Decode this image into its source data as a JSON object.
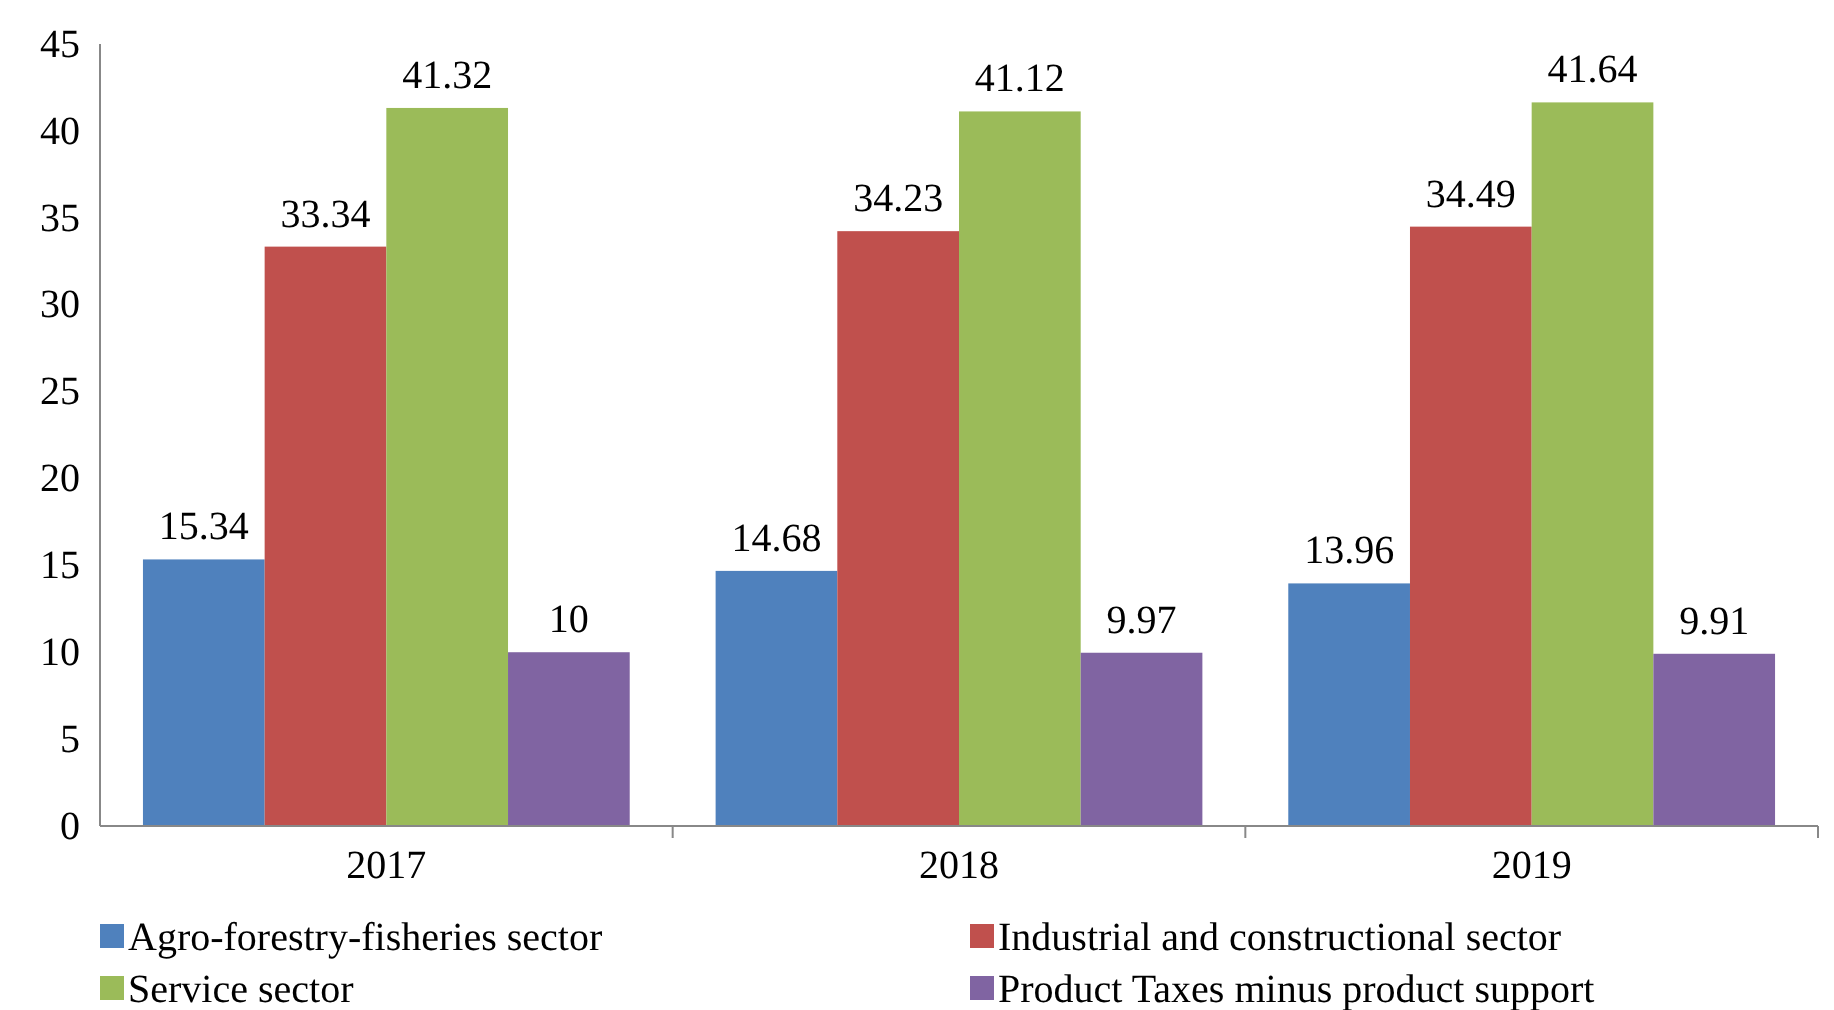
{
  "chart_data": {
    "type": "bar",
    "categories": [
      "2017",
      "2018",
      "2019"
    ],
    "series": [
      {
        "name": "Agro-forestry-fisheries sector",
        "color": "#4f81bd",
        "values": [
          15.34,
          14.68,
          13.96
        ]
      },
      {
        "name": "Industrial and constructional sector",
        "color": "#c0504d",
        "values": [
          33.34,
          34.23,
          34.49
        ]
      },
      {
        "name": "Service sector",
        "color": "#9bbb59",
        "values": [
          41.32,
          41.12,
          41.64
        ]
      },
      {
        "name": "Product Taxes minus product support",
        "color": "#8064a2",
        "values": [
          10,
          9.97,
          9.91
        ]
      }
    ],
    "ylim": [
      0,
      45
    ],
    "yticks": [
      0,
      5,
      10,
      15,
      20,
      25,
      30,
      35,
      40,
      45
    ],
    "grid": false,
    "legend": "bottom",
    "data_labels": true
  }
}
